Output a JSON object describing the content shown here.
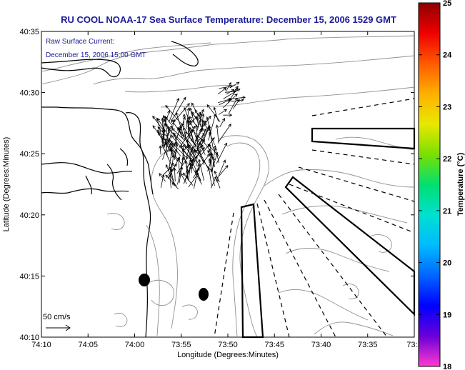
{
  "title": "RU COOL  NOAA-17  Sea Surface Temperature:  December 15, 2006 1529 GMT",
  "annotation": {
    "line1": "Raw Surface Current:",
    "line2": "December 15, 2006 15:00 GMT",
    "scale_label": "50 cm/s"
  },
  "axes": {
    "xlabel": "Longitude (Degrees:Minutes)",
    "ylabel": "Latitude (Degrees:Minutes)",
    "x_ticks": [
      "74:10",
      "74:05",
      "74:00",
      "73:55",
      "73:50",
      "73:45",
      "73:40",
      "73:35",
      "73:3"
    ],
    "y_ticks": [
      "40:35",
      "40:30",
      "40:25",
      "40:20",
      "40:15",
      "40:10"
    ]
  },
  "colorbar": {
    "label": "Temperature (°C)",
    "ticks": [
      "25",
      "24",
      "23",
      "22",
      "21",
      "20",
      "19",
      "18"
    ],
    "min": 18,
    "max": 25,
    "colors": [
      "#ff3ad0",
      "#6a00d8",
      "#0000ff",
      "#0066ff",
      "#00bbff",
      "#00e0d0",
      "#00e070",
      "#7ae000",
      "#e8e800",
      "#ffb000",
      "#ff5a00",
      "#ee0000",
      "#900000"
    ]
  },
  "map_colors": {
    "frame": "#000000",
    "coast": "#000000",
    "contours": "#909090",
    "vectors": "#000000"
  }
}
